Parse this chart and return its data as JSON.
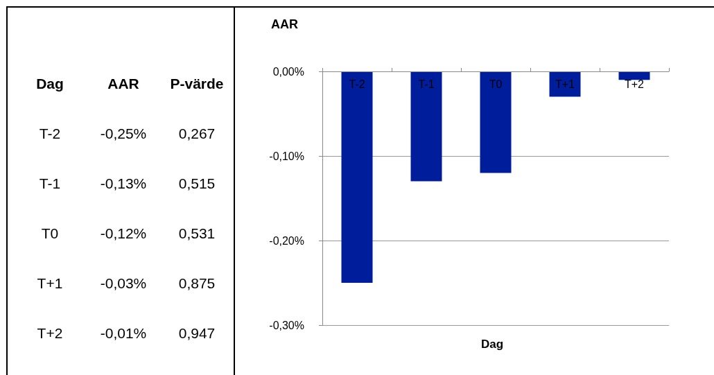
{
  "chart_data": [
    {
      "type": "other",
      "xlabel": "Dag",
      "categories": [
        "T-2",
        "T-1",
        "T0",
        "T+1",
        "T+2"
      ],
      "series": [
        {
          "name": "P-värde",
          "values": [
            0.267,
            0.515,
            0.531,
            0.875,
            0.947
          ],
          "value_labels": [
            "0,267",
            "0,515",
            "0,531",
            "0,875",
            "0,947"
          ]
        }
      ]
    },
    {
      "type": "bar",
      "title": "AAR",
      "xlabel": "Dag",
      "categories": [
        "T-2",
        "T-1",
        "T0",
        "T+1",
        "T+2"
      ],
      "values": [
        -0.25,
        -0.13,
        -0.12,
        -0.03,
        -0.01
      ],
      "value_labels": [
        "-0,25%",
        "-0,13%",
        "-0,12%",
        "-0,03%",
        "-0,01%"
      ],
      "color": "#001e9c",
      "ylim": [
        -0.3,
        0
      ],
      "yticks": [
        {
          "value": -0.3,
          "label": "-0,30%"
        },
        {
          "value": -0.2,
          "label": "-0,20%"
        },
        {
          "value": -0.1,
          "label": "-0,10%"
        },
        {
          "value": 0,
          "label": "0,00%"
        }
      ],
      "grid": "y"
    }
  ]
}
